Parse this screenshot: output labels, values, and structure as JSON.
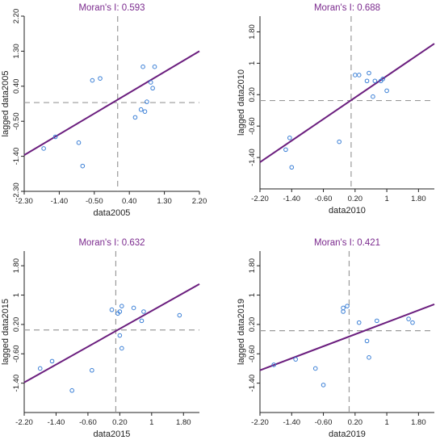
{
  "colors": {
    "regression": "#6b1e7e",
    "points": "#3a7fd6",
    "guides": "#9a9a9a",
    "title": "#7b2a8e"
  },
  "chart_data": [
    {
      "type": "scatter",
      "title": "Moran's I: 0.593",
      "xlabel": "data2005",
      "ylabel": "lagged data2005",
      "xlim": [
        -2.3,
        2.2
      ],
      "ylim": [
        -2.3,
        2.2
      ],
      "xticks": [
        "-2.30",
        "-1.40",
        "-0.50",
        "0.40",
        "1.30",
        "2.20"
      ],
      "yticks": [
        "-2.30",
        "-1.40",
        "-0.50",
        "0.40",
        "1.30",
        "2.20"
      ],
      "x": [
        -1.8,
        -1.5,
        -0.9,
        -0.8,
        -0.55,
        -0.35,
        0.55,
        0.7,
        0.75,
        0.8,
        0.85,
        0.95,
        1.05,
        1.0
      ],
      "y": [
        -1.2,
        -0.9,
        -1.05,
        -1.65,
        0.55,
        0.6,
        -0.4,
        -0.2,
        0.9,
        -0.25,
        0.0,
        0.5,
        0.9,
        0.35
      ],
      "regression": [
        [
          -2.3,
          -1.37
        ],
        [
          2.2,
          1.3
        ]
      ],
      "vline": 0.1,
      "hline": -0.02
    },
    {
      "type": "scatter",
      "title": "Moran's I: 0.688",
      "xlabel": "data2010",
      "ylabel": "lagged data2010",
      "xlim": [
        -2.2,
        2.2
      ],
      "ylim": [
        -2.2,
        2.2
      ],
      "xticks": [
        "-2.20",
        "-1.40",
        "-0.60",
        "0.20",
        "1",
        "1.80"
      ],
      "yticks": [
        "-1.40",
        "-0.60",
        "0.20",
        "1",
        "1.80"
      ],
      "x": [
        -1.55,
        -1.45,
        -1.4,
        -0.2,
        0.2,
        0.3,
        0.5,
        0.55,
        0.65,
        0.7,
        0.85,
        0.9,
        1.0
      ],
      "y": [
        -1.2,
        -0.9,
        -1.65,
        -1.0,
        0.7,
        0.7,
        0.55,
        0.75,
        0.15,
        0.55,
        0.55,
        0.6,
        0.3
      ],
      "regression": [
        [
          -2.2,
          -1.52
        ],
        [
          2.2,
          1.5
        ]
      ],
      "vline": 0.1,
      "hline": 0.05
    },
    {
      "type": "scatter",
      "title": "Moran's I: 0.632",
      "xlabel": "data2015",
      "ylabel": "lagged data2015",
      "xlim": [
        -2.2,
        2.2
      ],
      "ylim": [
        -2.2,
        2.2
      ],
      "xticks": [
        "-2.20",
        "-1.40",
        "-0.60",
        "0.20",
        "1",
        "1.80"
      ],
      "yticks": [
        "-1.40",
        "-0.60",
        "0.20",
        "1",
        "1.80"
      ],
      "x": [
        -1.8,
        -1.5,
        -1.0,
        -0.5,
        0.0,
        0.15,
        0.2,
        0.25,
        0.25,
        0.55,
        0.75,
        0.8,
        1.7,
        0.2
      ],
      "y": [
        -1.0,
        -0.8,
        -1.6,
        -1.05,
        0.6,
        0.5,
        0.55,
        0.7,
        -0.45,
        0.65,
        0.3,
        0.55,
        0.45,
        -0.1
      ],
      "regression": [
        [
          -2.2,
          -1.38
        ],
        [
          2.2,
          1.3
        ]
      ],
      "vline": 0.1,
      "hline": 0.05
    },
    {
      "type": "scatter",
      "title": "Moran's I: 0.421",
      "xlabel": "data2019",
      "ylabel": "lagged data2019",
      "xlim": [
        -2.2,
        2.2
      ],
      "ylim": [
        -2.2,
        2.2
      ],
      "xticks": [
        "-2.20",
        "-1.40",
        "-0.60",
        "0.20",
        "1",
        "1.80"
      ],
      "yticks": [
        "-1.40",
        "-0.60",
        "0.20",
        "1",
        "1.80"
      ],
      "x": [
        -1.85,
        -1.3,
        -0.8,
        -0.6,
        -0.1,
        -0.1,
        0.0,
        0.3,
        0.55,
        0.75,
        1.55,
        1.65,
        0.5
      ],
      "y": [
        -0.9,
        -0.75,
        -1.0,
        -1.45,
        0.65,
        0.55,
        0.7,
        0.25,
        -0.7,
        0.3,
        0.35,
        0.25,
        -0.25
      ],
      "regression": [
        [
          -2.2,
          -1.05
        ],
        [
          2.2,
          0.75
        ]
      ],
      "vline": 0.05,
      "hline": 0.03
    }
  ]
}
